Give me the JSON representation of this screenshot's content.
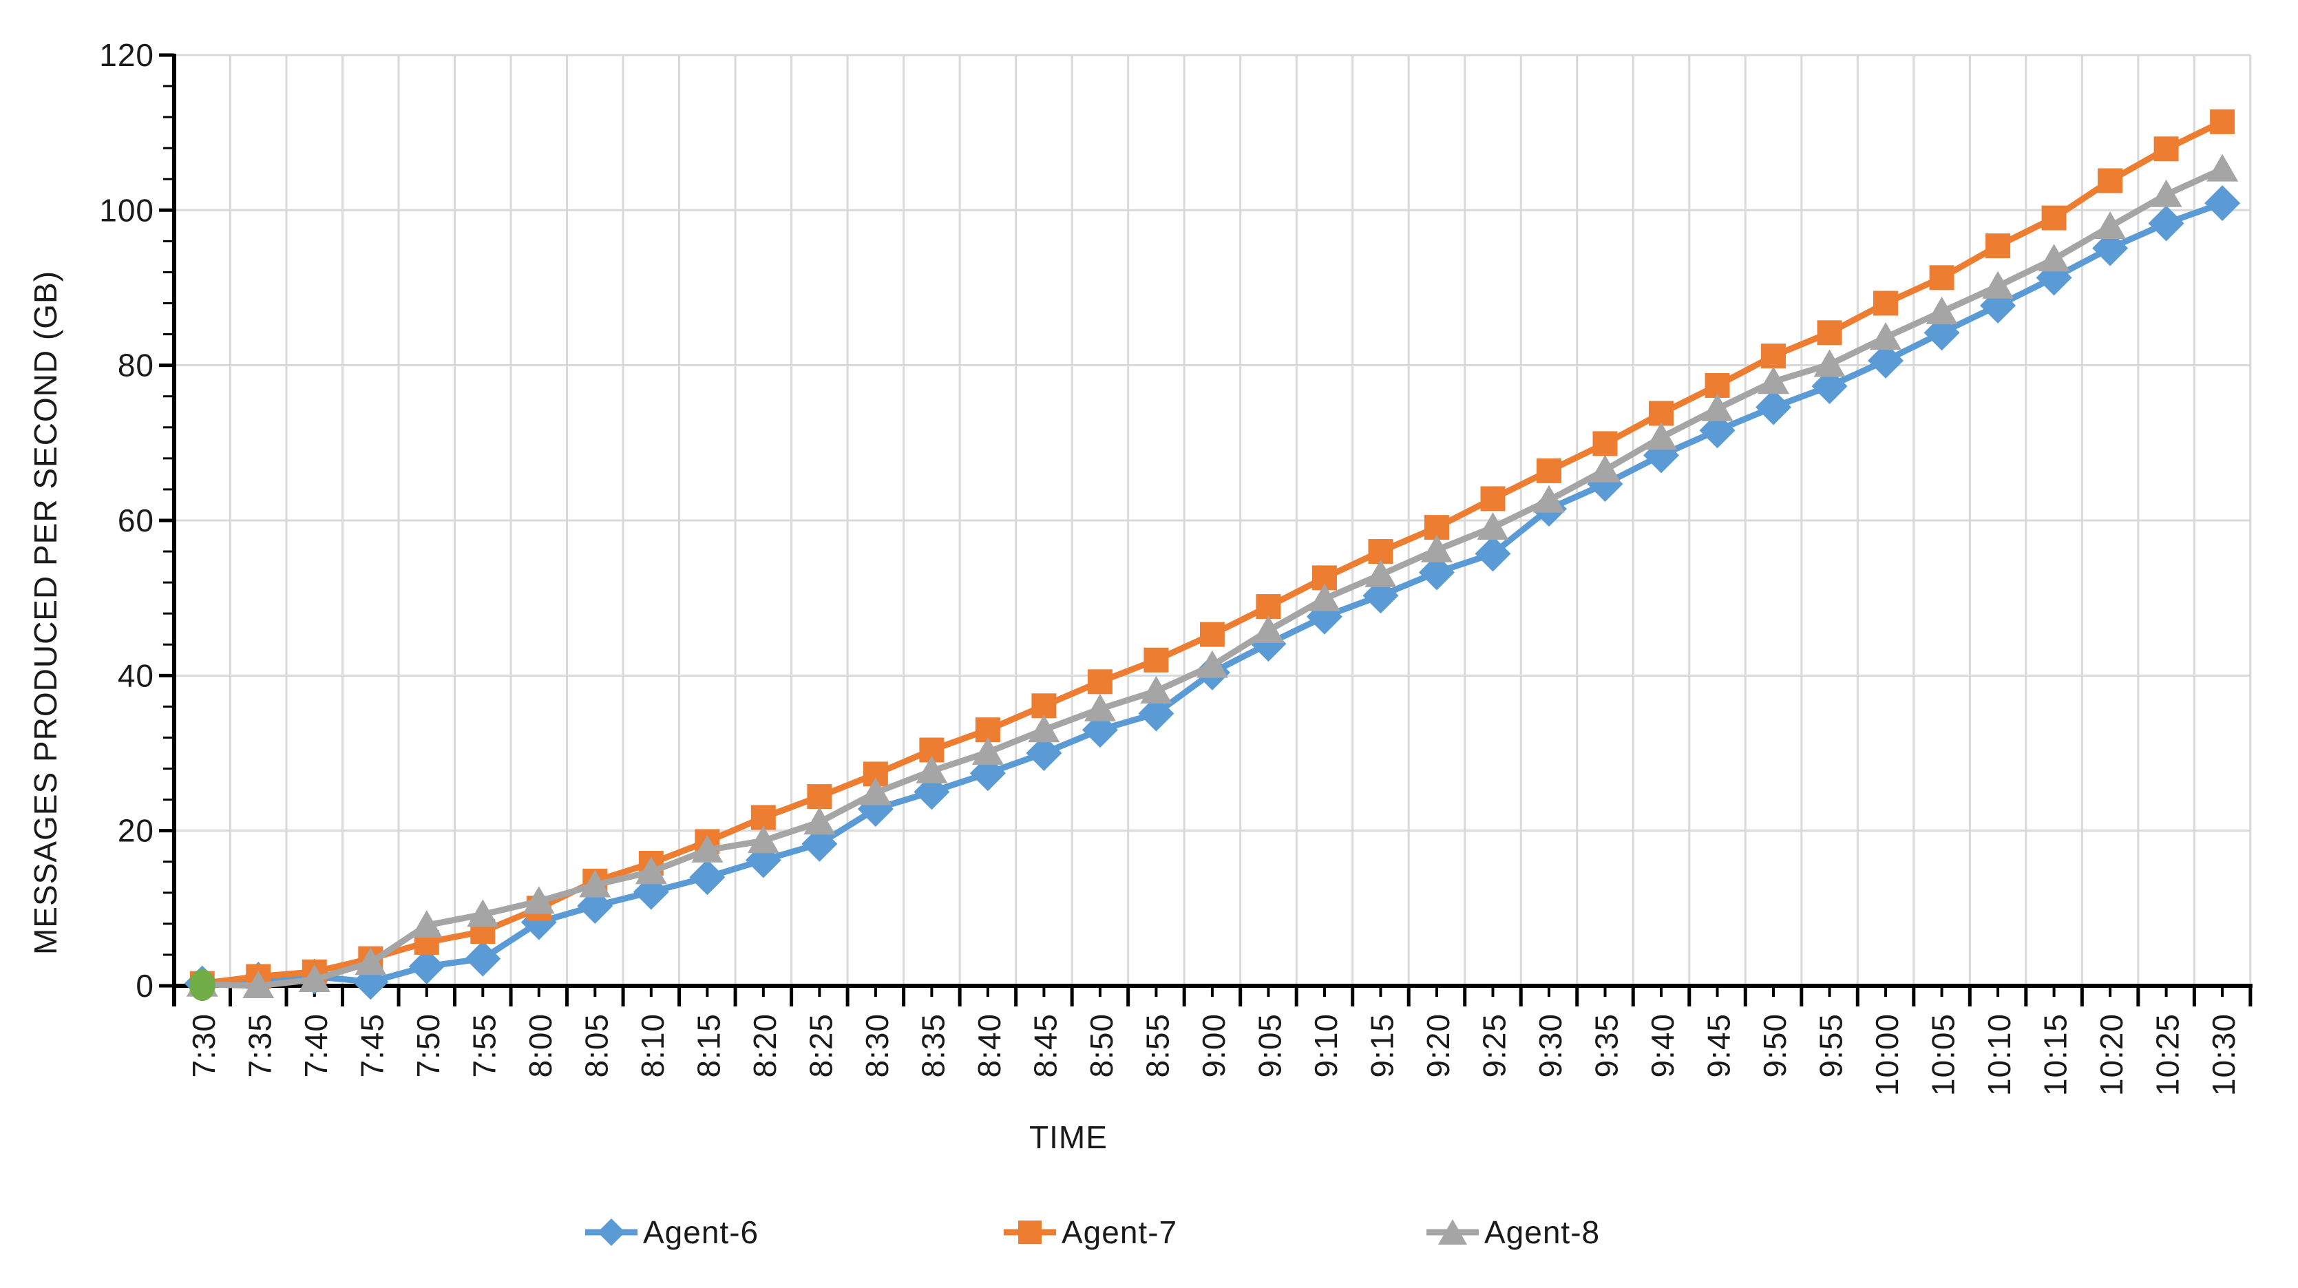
{
  "chart_data": {
    "type": "line",
    "title": "",
    "xlabel": "TIME",
    "ylabel": "MESSAGES PRODUCED PER SECOND (GB)",
    "ylim": [
      0,
      120
    ],
    "yticks": [
      0,
      20,
      40,
      60,
      80,
      100,
      120
    ],
    "y_minor_unit": 4,
    "grid": true,
    "legend_position": "bottom",
    "categories": [
      "7:30",
      "7:35",
      "7:40",
      "7:45",
      "7:50",
      "7:55",
      "8:00",
      "8:05",
      "8:10",
      "8:15",
      "8:20",
      "8:25",
      "8:30",
      "8:35",
      "8:40",
      "8:45",
      "8:50",
      "8:55",
      "9:00",
      "9:05",
      "9:10",
      "9:15",
      "9:20",
      "9:25",
      "9:30",
      "9:35",
      "9:40",
      "9:45",
      "9:50",
      "9:55",
      "10:00",
      "10:05",
      "10:10",
      "10:15",
      "10:20",
      "10:25",
      "10:30"
    ],
    "series": [
      {
        "name": "Agent-6",
        "color": "#5B9BD5",
        "marker": "diamond",
        "values": [
          0.3,
          0.8,
          1.2,
          0.5,
          2.5,
          3.5,
          8.2,
          10.3,
          12.1,
          14.0,
          16.2,
          18.3,
          22.8,
          25.0,
          27.4,
          30.0,
          33.0,
          35.1,
          40.4,
          44.1,
          47.6,
          50.3,
          53.3,
          55.7,
          61.5,
          64.7,
          68.4,
          71.6,
          74.6,
          77.3,
          80.6,
          84.2,
          87.7,
          91.3,
          95.1,
          98.3,
          100.9
        ]
      },
      {
        "name": "Agent-7",
        "color": "#ED7D31",
        "marker": "square",
        "values": [
          0.3,
          1.2,
          1.8,
          3.5,
          5.6,
          7.0,
          10.0,
          13.5,
          15.8,
          18.6,
          21.7,
          24.4,
          27.3,
          30.4,
          33.0,
          36.1,
          39.2,
          42.0,
          45.3,
          48.9,
          52.6,
          56.0,
          59.1,
          62.8,
          66.4,
          69.9,
          73.8,
          77.4,
          81.2,
          84.2,
          88.0,
          91.3,
          95.4,
          99.0,
          103.8,
          107.9,
          111.4
        ]
      },
      {
        "name": "Agent-8",
        "color": "#A5A5A5",
        "marker": "triangle",
        "values": [
          0.2,
          0.0,
          0.8,
          3.0,
          7.8,
          9.2,
          10.9,
          13.0,
          14.7,
          17.5,
          18.7,
          21.1,
          24.9,
          27.7,
          30.1,
          33.0,
          35.7,
          38.0,
          41.3,
          45.8,
          49.9,
          53.0,
          56.2,
          59.1,
          62.6,
          66.5,
          70.7,
          74.4,
          77.9,
          80.1,
          83.6,
          86.9,
          90.2,
          93.7,
          97.9,
          102.0,
          105.3
        ]
      }
    ],
    "annotation": {
      "shape": "ellipse-highlight",
      "category": "7:30",
      "value": 0,
      "color": "#70AD47"
    },
    "colors": {
      "gridline": "#D9D9D9",
      "axis": "#000000",
      "text": "#1a1a1a"
    }
  }
}
